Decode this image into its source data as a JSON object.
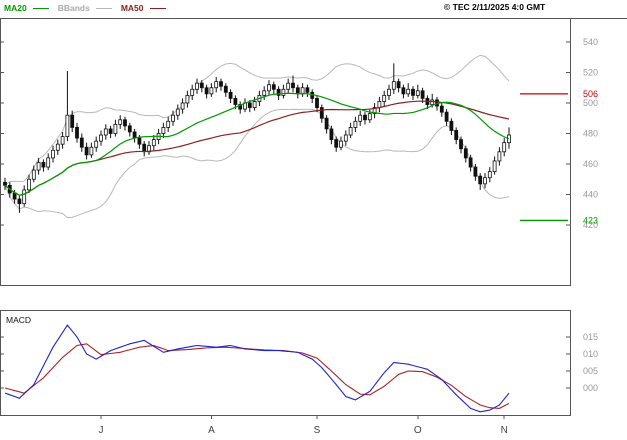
{
  "meta": {
    "copyright": "© TEC 2/11/2025 4:0 GMT"
  },
  "legend": {
    "ma20_label": "MA20",
    "bbands_label": "BBands",
    "ma50_label": "MA50"
  },
  "colors": {
    "ma20": "#009900",
    "ma50": "#8b2020",
    "bbands": "#b8b8b8",
    "bbands_text": "#aaaaaa",
    "candle": "#111111",
    "macd_line": "#2222cc",
    "macd_signal": "#aa2222",
    "resistance": "#cc0000",
    "support": "#009900",
    "axis_text": "#999999",
    "month_text": "#444444",
    "frame": "#555555"
  },
  "chart_data": {
    "type": "candlestick",
    "title": "",
    "price_axis": {
      "ticks": [
        540,
        520,
        500,
        480,
        460,
        440,
        420
      ],
      "ylim": [
        381,
        555
      ]
    },
    "x_axis": {
      "months": [
        {
          "label": "J",
          "index": 20
        },
        {
          "label": "A",
          "index": 43
        },
        {
          "label": "S",
          "index": 65
        },
        {
          "label": "O",
          "index": 86
        },
        {
          "label": "N",
          "index": 104
        }
      ]
    },
    "levels": {
      "resistance": 506,
      "support": 423
    },
    "overlays": [
      "MA20",
      "BBands",
      "MA50"
    ],
    "candles_ohlc": [
      [
        448,
        451,
        443,
        446
      ],
      [
        446,
        448,
        438,
        441
      ],
      [
        441,
        443,
        434,
        437
      ],
      [
        437,
        439,
        428,
        434
      ],
      [
        434,
        446,
        432,
        443
      ],
      [
        443,
        453,
        441,
        450
      ],
      [
        450,
        459,
        448,
        456
      ],
      [
        456,
        464,
        453,
        461
      ],
      [
        461,
        463,
        455,
        458
      ],
      [
        458,
        467,
        456,
        464
      ],
      [
        464,
        472,
        461,
        469
      ],
      [
        469,
        476,
        466,
        473
      ],
      [
        473,
        481,
        470,
        478
      ],
      [
        478,
        521,
        475,
        492
      ],
      [
        492,
        495,
        481,
        484
      ],
      [
        484,
        487,
        474,
        477
      ],
      [
        477,
        480,
        468,
        471
      ],
      [
        471,
        474,
        463,
        466
      ],
      [
        466,
        474,
        464,
        471
      ],
      [
        471,
        478,
        468,
        475
      ],
      [
        475,
        482,
        472,
        479
      ],
      [
        479,
        486,
        476,
        483
      ],
      [
        483,
        485,
        477,
        480
      ],
      [
        480,
        489,
        478,
        486
      ],
      [
        486,
        492,
        483,
        489
      ],
      [
        489,
        491,
        482,
        485
      ],
      [
        485,
        487,
        478,
        481
      ],
      [
        481,
        483,
        474,
        477
      ],
      [
        477,
        479,
        470,
        473
      ],
      [
        473,
        475,
        465,
        468
      ],
      [
        468,
        475,
        466,
        472
      ],
      [
        472,
        479,
        469,
        476
      ],
      [
        476,
        483,
        473,
        480
      ],
      [
        480,
        487,
        477,
        484
      ],
      [
        484,
        491,
        481,
        488
      ],
      [
        488,
        495,
        485,
        492
      ],
      [
        492,
        499,
        489,
        496
      ],
      [
        496,
        503,
        493,
        500
      ],
      [
        500,
        508,
        497,
        505
      ],
      [
        505,
        512,
        502,
        509
      ],
      [
        509,
        516,
        506,
        513
      ],
      [
        513,
        515,
        507,
        510
      ],
      [
        510,
        512,
        503,
        506
      ],
      [
        506,
        513,
        504,
        510
      ],
      [
        510,
        517,
        507,
        514
      ],
      [
        514,
        516,
        508,
        511
      ],
      [
        511,
        513,
        504,
        507
      ],
      [
        507,
        509,
        500,
        503
      ],
      [
        503,
        505,
        496,
        499
      ],
      [
        499,
        501,
        493,
        496
      ],
      [
        496,
        503,
        494,
        500
      ],
      [
        500,
        502,
        494,
        497
      ],
      [
        497,
        504,
        495,
        501
      ],
      [
        501,
        508,
        498,
        505
      ],
      [
        505,
        511,
        502,
        508
      ],
      [
        508,
        515,
        505,
        512
      ],
      [
        512,
        514,
        506,
        509
      ],
      [
        509,
        511,
        502,
        505
      ],
      [
        505,
        512,
        503,
        509
      ],
      [
        509,
        516,
        506,
        513
      ],
      [
        513,
        518,
        507,
        510
      ],
      [
        510,
        512,
        503,
        506
      ],
      [
        506,
        513,
        504,
        510
      ],
      [
        510,
        512,
        504,
        507
      ],
      [
        507,
        509,
        500,
        503
      ],
      [
        503,
        505,
        494,
        497
      ],
      [
        497,
        499,
        487,
        490
      ],
      [
        490,
        492,
        480,
        483
      ],
      [
        483,
        485,
        473,
        476
      ],
      [
        476,
        478,
        468,
        471
      ],
      [
        471,
        478,
        469,
        475
      ],
      [
        475,
        482,
        472,
        479
      ],
      [
        479,
        487,
        477,
        484
      ],
      [
        484,
        491,
        481,
        488
      ],
      [
        488,
        495,
        485,
        492
      ],
      [
        492,
        494,
        486,
        489
      ],
      [
        489,
        496,
        487,
        493
      ],
      [
        493,
        500,
        490,
        497
      ],
      [
        497,
        504,
        494,
        501
      ],
      [
        501,
        508,
        498,
        505
      ],
      [
        505,
        512,
        502,
        509
      ],
      [
        509,
        526,
        506,
        514
      ],
      [
        514,
        516,
        507,
        510
      ],
      [
        510,
        512,
        503,
        506
      ],
      [
        506,
        513,
        504,
        509
      ],
      [
        509,
        511,
        502,
        505
      ],
      [
        505,
        512,
        503,
        508
      ],
      [
        508,
        510,
        500,
        503
      ],
      [
        503,
        505,
        496,
        499
      ],
      [
        499,
        506,
        497,
        502
      ],
      [
        502,
        504,
        495,
        498
      ],
      [
        498,
        500,
        491,
        494
      ],
      [
        494,
        496,
        485,
        488
      ],
      [
        488,
        490,
        479,
        482
      ],
      [
        482,
        484,
        473,
        476
      ],
      [
        476,
        478,
        467,
        470
      ],
      [
        470,
        472,
        461,
        464
      ],
      [
        464,
        466,
        455,
        458
      ],
      [
        458,
        460,
        449,
        452
      ],
      [
        452,
        454,
        443,
        447
      ],
      [
        447,
        454,
        444,
        451
      ],
      [
        451,
        458,
        448,
        455
      ],
      [
        455,
        465,
        453,
        462
      ],
      [
        462,
        471,
        459,
        468
      ],
      [
        468,
        477,
        465,
        474
      ],
      [
        474,
        484,
        470,
        479
      ]
    ],
    "macd": {
      "label": "MACD",
      "tick_labels": [
        "015",
        "010",
        "005",
        "000"
      ],
      "tick_values": [
        15,
        10,
        5,
        0
      ],
      "line_points": [
        [
          0,
          -1.5
        ],
        [
          3,
          -3
        ],
        [
          6,
          1
        ],
        [
          10,
          12
        ],
        [
          13,
          18.5
        ],
        [
          15,
          15
        ],
        [
          17,
          10
        ],
        [
          19,
          8.5
        ],
        [
          22,
          11
        ],
        [
          26,
          13
        ],
        [
          29,
          14
        ],
        [
          33,
          10.5
        ],
        [
          36,
          11.5
        ],
        [
          40,
          12.5
        ],
        [
          44,
          12
        ],
        [
          47,
          12.5
        ],
        [
          50,
          11.5
        ],
        [
          54,
          11
        ],
        [
          57,
          11
        ],
        [
          61,
          10.5
        ],
        [
          64,
          8.5
        ],
        [
          66,
          6
        ],
        [
          69,
          1
        ],
        [
          71,
          -2.5
        ],
        [
          73,
          -3.5
        ],
        [
          76,
          -1
        ],
        [
          79,
          4.5
        ],
        [
          81,
          7.5
        ],
        [
          84,
          7
        ],
        [
          88,
          5.5
        ],
        [
          91,
          2.5
        ],
        [
          94,
          -2
        ],
        [
          97,
          -6
        ],
        [
          99,
          -7
        ],
        [
          101,
          -6.5
        ],
        [
          103,
          -5
        ],
        [
          105,
          -1.5
        ]
      ],
      "signal_points": [
        [
          0,
          0
        ],
        [
          4,
          -1.5
        ],
        [
          8,
          3
        ],
        [
          12,
          9
        ],
        [
          15,
          12.5
        ],
        [
          17,
          13
        ],
        [
          20,
          9.8
        ],
        [
          24,
          10.5
        ],
        [
          28,
          12
        ],
        [
          31,
          12.5
        ],
        [
          34,
          11
        ],
        [
          38,
          11.3
        ],
        [
          42,
          11.8
        ],
        [
          46,
          12
        ],
        [
          50,
          11.6
        ],
        [
          54,
          11.2
        ],
        [
          58,
          11
        ],
        [
          62,
          10.3
        ],
        [
          65,
          8.8
        ],
        [
          68,
          5
        ],
        [
          71,
          1
        ],
        [
          74,
          -1.8
        ],
        [
          76,
          -2
        ],
        [
          79,
          0.5
        ],
        [
          82,
          4
        ],
        [
          84,
          5
        ],
        [
          87,
          4.8
        ],
        [
          90,
          3.2
        ],
        [
          93,
          0.8
        ],
        [
          96,
          -2.5
        ],
        [
          99,
          -5
        ],
        [
          101,
          -5.8
        ],
        [
          103,
          -6
        ],
        [
          105,
          -4.5
        ]
      ]
    }
  }
}
